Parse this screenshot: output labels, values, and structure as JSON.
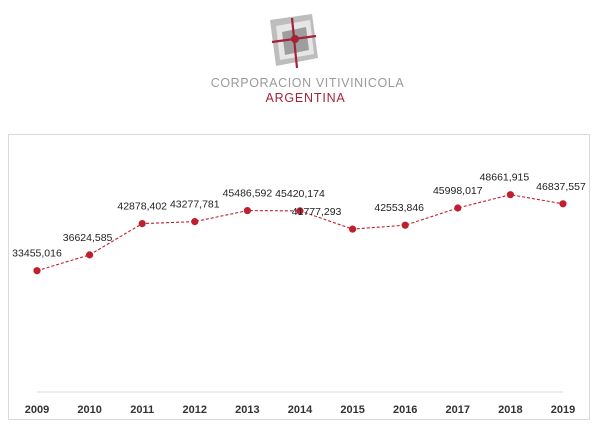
{
  "brand": {
    "name_line1": "CORPORACION VITIVINICOLA",
    "name_line2": "ARGENTINA",
    "logo_icon": "cova-logo-icon",
    "logo_color_primary": "#a3243a",
    "logo_color_secondary": "#a8a8a8"
  },
  "chart_data": {
    "type": "line",
    "x": [
      "2009",
      "2010",
      "2011",
      "2012",
      "2013",
      "2014",
      "2015",
      "2016",
      "2017",
      "2018",
      "2019"
    ],
    "series": [
      {
        "values": [
          33455016,
          36624585,
          42878402,
          43277781,
          45486592,
          45420174,
          41777293,
          42553846,
          45998017,
          48661915,
          46837557
        ],
        "labels": [
          "33455,016",
          "36624,585",
          "42878,402",
          "43277,781",
          "45486,592",
          "45420,174",
          "41777,293",
          "42553,846",
          "45998,017",
          "48661,915",
          "46837,557"
        ],
        "color": "#c0202e",
        "line_style": "dashed"
      }
    ],
    "title": "",
    "xlabel": "",
    "ylabel": "",
    "grid": false,
    "legend": "none"
  }
}
